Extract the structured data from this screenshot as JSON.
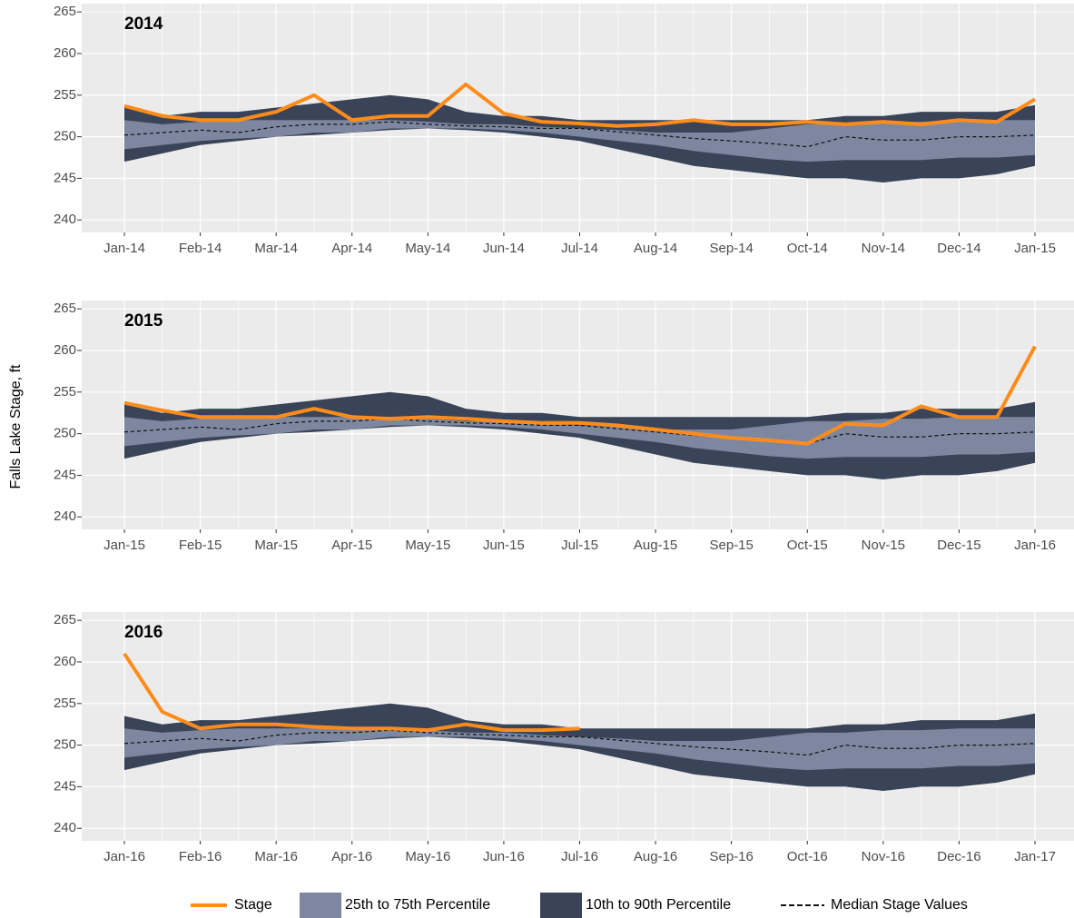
{
  "y_label": "Falls Lake Stage, ft",
  "legend": [
    {
      "name": "Stage",
      "color": "#ff8c1a"
    },
    {
      "name": "25th to 75th Percentile",
      "color": "#7d88a0"
    },
    {
      "name": "10th to 90th Percentile",
      "color": "#3a4459"
    },
    {
      "name": "Median Stage Values",
      "color": "#111111"
    }
  ],
  "chart_data": [
    {
      "type": "line",
      "title": "2014",
      "ylim": [
        238.5,
        266
      ],
      "yticks": [
        240,
        245,
        250,
        255,
        260,
        265
      ],
      "grid": true,
      "categories": [
        "Jan-14",
        null,
        "Feb-14",
        null,
        "Mar-14",
        null,
        "Apr-14",
        null,
        "May-14",
        null,
        "Jun-14",
        null,
        "Jul-14",
        null,
        "Aug-14",
        null,
        "Sep-14",
        null,
        "Oct-14",
        null,
        "Nov-14",
        null,
        "Dec-14",
        null,
        "Jan-15"
      ],
      "stage": [
        253.7,
        252.5,
        252,
        252,
        253,
        255,
        252,
        252.5,
        252.5,
        256.3,
        252.8,
        251.8,
        251.6,
        251.3,
        251.5,
        252,
        251.5,
        251.5,
        251.8,
        251.5,
        251.8,
        251.5,
        252,
        251.8,
        254.5
      ],
      "p90": [
        253.5,
        252.5,
        253,
        253,
        253.5,
        254,
        254.5,
        255,
        254.5,
        253,
        252.5,
        252.5,
        252,
        252,
        252,
        252,
        252,
        252,
        252,
        252.5,
        252.5,
        253,
        253,
        253,
        253.8
      ],
      "p75": [
        252,
        251.5,
        251.8,
        252,
        252,
        252,
        252,
        252,
        251.8,
        251.5,
        251.5,
        251.2,
        251,
        250.8,
        250.5,
        250.5,
        250.5,
        251,
        251.5,
        251.5,
        251.8,
        251.8,
        252,
        252,
        252
      ],
      "median": [
        250.2,
        250.5,
        250.8,
        250.5,
        251.2,
        251.5,
        251.5,
        251.8,
        251.5,
        251.3,
        251.2,
        251,
        251,
        250.6,
        250.2,
        249.8,
        249.5,
        249.2,
        248.8,
        250,
        249.6,
        249.6,
        250,
        250,
        250.2
      ],
      "p25": [
        248.5,
        249,
        249.5,
        249.8,
        250,
        250.5,
        250.5,
        251,
        251,
        251,
        250.8,
        250.5,
        250,
        249.5,
        249,
        248.3,
        247.8,
        247.3,
        247,
        247.2,
        247.2,
        247.2,
        247.5,
        247.5,
        247.8
      ],
      "p10": [
        247,
        248,
        249,
        249.5,
        250,
        250.2,
        250.5,
        250.8,
        251,
        250.8,
        250.5,
        250,
        249.5,
        248.5,
        247.5,
        246.5,
        246,
        245.5,
        245,
        245,
        244.5,
        245,
        245,
        245.5,
        246.5
      ]
    },
    {
      "type": "line",
      "title": "2015",
      "ylim": [
        238.5,
        266
      ],
      "yticks": [
        240,
        245,
        250,
        255,
        260,
        265
      ],
      "grid": true,
      "categories": [
        "Jan-15",
        null,
        "Feb-15",
        null,
        "Mar-15",
        null,
        "Apr-15",
        null,
        "May-15",
        null,
        "Jun-15",
        null,
        "Jul-15",
        null,
        "Aug-15",
        null,
        "Sep-15",
        null,
        "Oct-15",
        null,
        "Nov-15",
        null,
        "Dec-15",
        null,
        "Jan-16"
      ],
      "stage": [
        253.7,
        252.8,
        252,
        252,
        252,
        253,
        252,
        251.8,
        252,
        251.8,
        251.5,
        251.3,
        251.3,
        251,
        250.5,
        250,
        249.5,
        249.2,
        248.8,
        251.2,
        251,
        253.3,
        252,
        252,
        260.5
      ],
      "p90": [
        253.5,
        252.5,
        253,
        253,
        253.5,
        254,
        254.5,
        255,
        254.5,
        253,
        252.5,
        252.5,
        252,
        252,
        252,
        252,
        252,
        252,
        252,
        252.5,
        252.5,
        253,
        253,
        253,
        253.8
      ],
      "p75": [
        252,
        251.5,
        251.8,
        252,
        252,
        252,
        252,
        252,
        251.8,
        251.5,
        251.5,
        251.2,
        251,
        250.8,
        250.5,
        250.5,
        250.5,
        251,
        251.5,
        251.5,
        251.8,
        251.8,
        252,
        252,
        252
      ],
      "median": [
        250.2,
        250.5,
        250.8,
        250.5,
        251.2,
        251.5,
        251.5,
        251.8,
        251.5,
        251.3,
        251.2,
        251,
        251,
        250.6,
        250.2,
        249.8,
        249.5,
        249.2,
        248.8,
        250,
        249.6,
        249.6,
        250,
        250,
        250.2
      ],
      "p25": [
        248.5,
        249,
        249.5,
        249.8,
        250,
        250.5,
        250.5,
        251,
        251,
        251,
        250.8,
        250.5,
        250,
        249.5,
        249,
        248.3,
        247.8,
        247.3,
        247,
        247.2,
        247.2,
        247.2,
        247.5,
        247.5,
        247.8
      ],
      "p10": [
        247,
        248,
        249,
        249.5,
        250,
        250.2,
        250.5,
        250.8,
        251,
        250.8,
        250.5,
        250,
        249.5,
        248.5,
        247.5,
        246.5,
        246,
        245.5,
        245,
        245,
        244.5,
        245,
        245,
        245.5,
        246.5
      ]
    },
    {
      "type": "line",
      "title": "2016",
      "ylim": [
        238.5,
        266
      ],
      "yticks": [
        240,
        245,
        250,
        255,
        260,
        265
      ],
      "grid": true,
      "categories": [
        "Jan-16",
        null,
        "Feb-16",
        null,
        "Mar-16",
        null,
        "Apr-16",
        null,
        "May-16",
        null,
        "Jun-16",
        null,
        "Jul-16",
        null,
        "Aug-16",
        null,
        "Sep-16",
        null,
        "Oct-16",
        null,
        "Nov-16",
        null,
        "Dec-16",
        null,
        "Jan-17"
      ],
      "stage": [
        261,
        254,
        252,
        252.5,
        252.5,
        252.2,
        252,
        252,
        251.8,
        252.5,
        251.8,
        251.8,
        252,
        null,
        null,
        null,
        null,
        null,
        null,
        null,
        null,
        null,
        null,
        null,
        null
      ],
      "p90": [
        253.5,
        252.5,
        253,
        253,
        253.5,
        254,
        254.5,
        255,
        254.5,
        253,
        252.5,
        252.5,
        252,
        252,
        252,
        252,
        252,
        252,
        252,
        252.5,
        252.5,
        253,
        253,
        253,
        253.8
      ],
      "p75": [
        252,
        251.5,
        251.8,
        252,
        252,
        252,
        252,
        252,
        251.8,
        251.5,
        251.5,
        251.2,
        251,
        250.8,
        250.5,
        250.5,
        250.5,
        251,
        251.5,
        251.5,
        251.8,
        251.8,
        252,
        252,
        252
      ],
      "median": [
        250.2,
        250.5,
        250.8,
        250.5,
        251.2,
        251.5,
        251.5,
        251.8,
        251.5,
        251.3,
        251.2,
        251,
        251,
        250.6,
        250.2,
        249.8,
        249.5,
        249.2,
        248.8,
        250,
        249.6,
        249.6,
        250,
        250,
        250.2
      ],
      "p25": [
        248.5,
        249,
        249.5,
        249.8,
        250,
        250.5,
        250.5,
        251,
        251,
        251,
        250.8,
        250.5,
        250,
        249.5,
        249,
        248.3,
        247.8,
        247.3,
        247,
        247.2,
        247.2,
        247.2,
        247.5,
        247.5,
        247.8
      ],
      "p10": [
        247,
        248,
        249,
        249.5,
        250,
        250.2,
        250.5,
        250.8,
        251,
        250.8,
        250.5,
        250,
        249.5,
        248.5,
        247.5,
        246.5,
        246,
        245.5,
        245,
        245,
        244.5,
        245,
        245,
        245.5,
        246.5
      ]
    }
  ]
}
